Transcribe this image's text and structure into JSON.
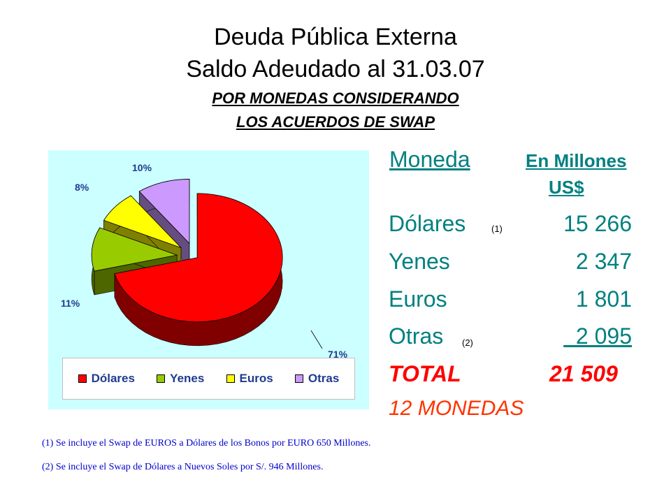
{
  "header": {
    "title1": "Deuda Pública Externa",
    "title2": "Saldo Adeudado al 31.03.07",
    "subtitle1": "POR MONEDAS CONSIDERANDO",
    "subtitle2": "LOS ACUERDOS DE SWAP"
  },
  "chart_data": {
    "type": "pie",
    "style": "3d-exploded",
    "categories": [
      "Dólares",
      "Yenes",
      "Euros",
      "Otras"
    ],
    "values": [
      71,
      11,
      8,
      10
    ],
    "value_labels": [
      "71%",
      "11%",
      "8%",
      "10%"
    ],
    "legend_position": "bottom",
    "background": "#ccffff",
    "colors": [
      "#ff0000",
      "#99cc00",
      "#ffff00",
      "#cc99ff"
    ],
    "side_colors": [
      "#800000",
      "#4d6600",
      "#808000",
      "#664d80"
    ]
  },
  "table": {
    "col_moneda": "Moneda",
    "col_millones_1": "En Millones",
    "col_millones_2": "US$",
    "rows": [
      {
        "name": "Dólares",
        "note": "(1)",
        "value": "15 266"
      },
      {
        "name": "Yenes",
        "note": "",
        "value": "2 347"
      },
      {
        "name": "Euros",
        "note": "",
        "value": "1 801"
      },
      {
        "name": "Otras",
        "note": "(2)",
        "value": "  2 095"
      }
    ],
    "total_label": "TOTAL",
    "total_value": "21 509",
    "count_label": "12 MONEDAS"
  },
  "footnotes": [
    "(1)  Se incluye el Swap de EUROS a Dólares de los Bonos por EURO 650 Millones.",
    "(2)  Se incluye el Swap de Dólares a Nuevos Soles por S/. 946 Millones."
  ]
}
